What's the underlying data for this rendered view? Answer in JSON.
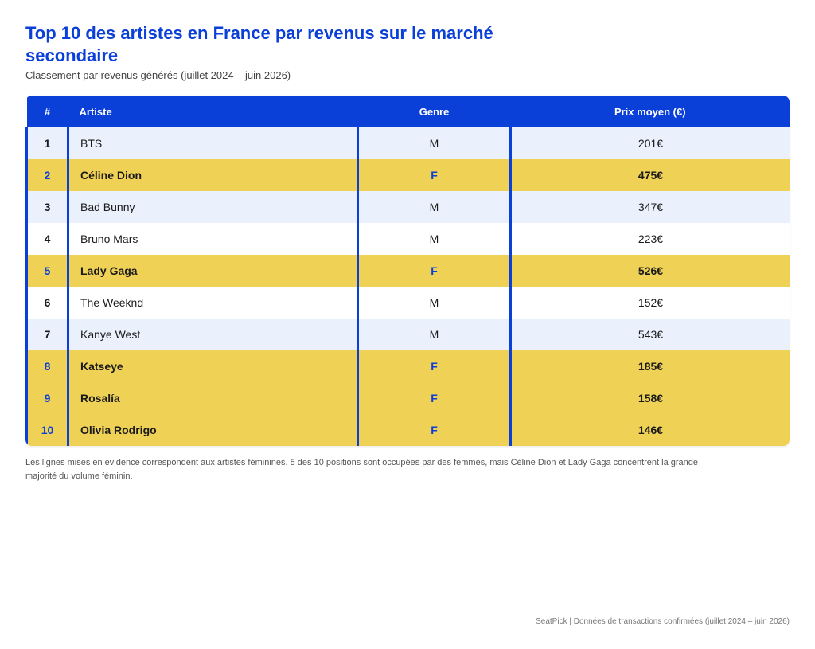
{
  "title": "Top 10 des artistes en France par revenus sur le marché secondaire",
  "subtitle": "Classement par revenus générés (juillet 2024 – juin 2026)",
  "colors": {
    "accent": "#0a3fd8",
    "highlight": "#efd155",
    "stripe": "#eaf0fc"
  },
  "chart_data": {
    "type": "table",
    "columns": [
      "#",
      "Artiste",
      "Genre",
      "Prix moyen (€)"
    ],
    "rows": [
      {
        "rank": "1",
        "artist": "BTS",
        "genre": "M",
        "price": "201€",
        "highlight": false
      },
      {
        "rank": "2",
        "artist": "Céline Dion",
        "genre": "F",
        "price": "475€",
        "highlight": true
      },
      {
        "rank": "3",
        "artist": "Bad Bunny",
        "genre": "M",
        "price": "347€",
        "highlight": false
      },
      {
        "rank": "4",
        "artist": "Bruno Mars",
        "genre": "M",
        "price": "223€",
        "highlight": false
      },
      {
        "rank": "5",
        "artist": "Lady Gaga",
        "genre": "F",
        "price": "526€",
        "highlight": true
      },
      {
        "rank": "6",
        "artist": "The Weeknd",
        "genre": "M",
        "price": "152€",
        "highlight": false
      },
      {
        "rank": "7",
        "artist": "Kanye West",
        "genre": "M",
        "price": "543€",
        "highlight": false
      },
      {
        "rank": "8",
        "artist": "Katseye",
        "genre": "F",
        "price": "185€",
        "highlight": true
      },
      {
        "rank": "9",
        "artist": "Rosalía",
        "genre": "F",
        "price": "158€",
        "highlight": true
      },
      {
        "rank": "10",
        "artist": "Olivia Rodrigo",
        "genre": "F",
        "price": "146€",
        "highlight": true
      }
    ]
  },
  "note": "Les lignes mises en évidence correspondent aux artistes féminines. 5 des 10 positions sont occupées par des femmes, mais Céline Dion et Lady Gaga concentrent la grande majorité du volume féminin.",
  "source": "SeatPick | Données de transactions confirmées (juillet 2024 – juin 2026)"
}
